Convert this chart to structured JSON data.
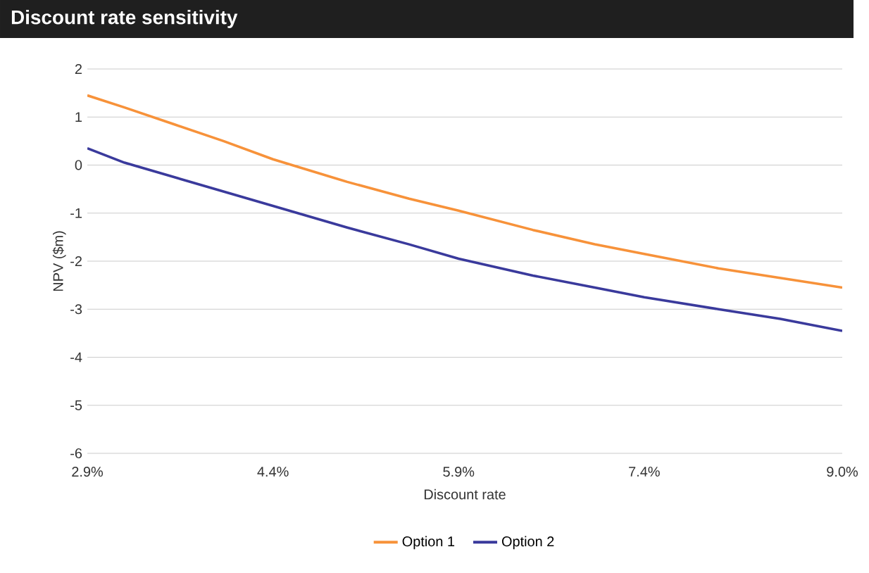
{
  "chart_data": {
    "type": "line",
    "title": "Discount rate sensitivity",
    "xlabel": "Discount rate",
    "ylabel": "NPV ($m)",
    "x": [
      2.9,
      3.2,
      3.6,
      4.0,
      4.4,
      5.0,
      5.5,
      5.9,
      6.5,
      7.0,
      7.4,
      8.0,
      8.5,
      9.0
    ],
    "series": [
      {
        "name": "Option 1",
        "color": "#f7923a",
        "values": [
          1.45,
          1.2,
          0.85,
          0.5,
          0.12,
          -0.35,
          -0.7,
          -0.95,
          -1.35,
          -1.65,
          -1.85,
          -2.15,
          -2.35,
          -2.55
        ]
      },
      {
        "name": "Option 2",
        "color": "#3a3a9c",
        "values": [
          0.35,
          0.05,
          -0.25,
          -0.55,
          -0.85,
          -1.3,
          -1.65,
          -1.95,
          -2.3,
          -2.55,
          -2.75,
          -3.0,
          -3.2,
          -3.45
        ]
      }
    ],
    "xlim": [
      2.9,
      9.0
    ],
    "ylim": [
      -6,
      2
    ],
    "xticks": [
      {
        "value": 2.9,
        "label": "2.9%"
      },
      {
        "value": 4.4,
        "label": "4.4%"
      },
      {
        "value": 5.9,
        "label": "5.9%"
      },
      {
        "value": 7.4,
        "label": "7.4%"
      },
      {
        "value": 9.0,
        "label": "9.0%"
      }
    ],
    "yticks": [
      -6,
      -5,
      -4,
      -3,
      -2,
      -1,
      0,
      1,
      2
    ],
    "grid": "y",
    "legend": "bottom"
  }
}
